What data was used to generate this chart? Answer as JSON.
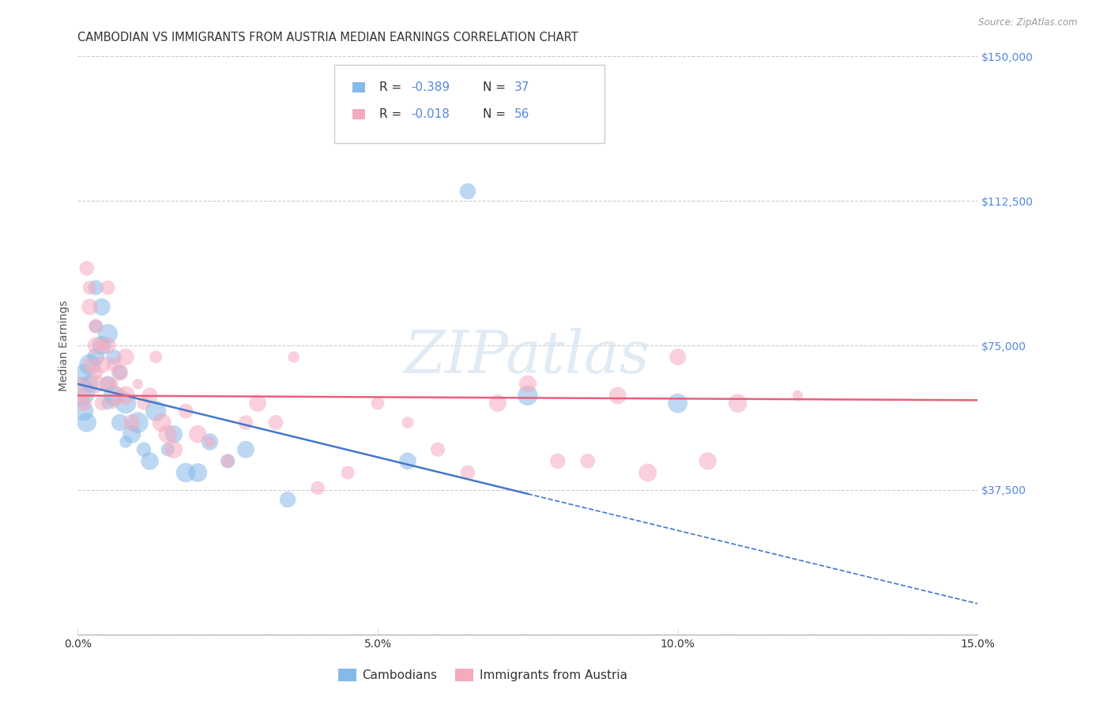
{
  "title": "CAMBODIAN VS IMMIGRANTS FROM AUSTRIA MEDIAN EARNINGS CORRELATION CHART",
  "source": "Source: ZipAtlas.com",
  "ylabel": "Median Earnings",
  "xlim": [
    0,
    0.15
  ],
  "ylim": [
    0,
    150000
  ],
  "yticks": [
    0,
    37500,
    75000,
    112500,
    150000
  ],
  "ytick_labels": [
    "",
    "$37,500",
    "$75,000",
    "$112,500",
    "$150,000"
  ],
  "xticks": [
    0.0,
    0.05,
    0.1,
    0.15
  ],
  "xtick_labels": [
    "0.0%",
    "5.0%",
    "10.0%",
    "15.0%"
  ],
  "blue_color": "#85B9E8",
  "pink_color": "#F5AABE",
  "blue_line_color": "#4477CC",
  "pink_line_color": "#E8607A",
  "right_axis_color": "#5588DD",
  "watermark": "ZIPatlas",
  "background_color": "#FFFFFF",
  "grid_color": "#CCCCCC",
  "cambodian_x": [
    0.0005,
    0.001,
    0.001,
    0.0015,
    0.002,
    0.002,
    0.003,
    0.003,
    0.003,
    0.004,
    0.004,
    0.005,
    0.005,
    0.005,
    0.006,
    0.006,
    0.007,
    0.007,
    0.008,
    0.008,
    0.009,
    0.01,
    0.011,
    0.012,
    0.013,
    0.015,
    0.016,
    0.018,
    0.02,
    0.022,
    0.025,
    0.028,
    0.035,
    0.055,
    0.065,
    0.075,
    0.1
  ],
  "cambodian_y": [
    63000,
    58000,
    68000,
    55000,
    70000,
    65000,
    72000,
    80000,
    90000,
    85000,
    75000,
    78000,
    65000,
    60000,
    72000,
    62000,
    68000,
    55000,
    60000,
    50000,
    52000,
    55000,
    48000,
    45000,
    58000,
    48000,
    52000,
    42000,
    42000,
    50000,
    45000,
    48000,
    35000,
    45000,
    115000,
    62000,
    60000
  ],
  "austria_x": [
    0.0005,
    0.001,
    0.001,
    0.0015,
    0.002,
    0.002,
    0.002,
    0.003,
    0.003,
    0.003,
    0.003,
    0.004,
    0.004,
    0.004,
    0.005,
    0.005,
    0.005,
    0.006,
    0.006,
    0.006,
    0.007,
    0.007,
    0.008,
    0.008,
    0.009,
    0.01,
    0.011,
    0.012,
    0.013,
    0.014,
    0.015,
    0.016,
    0.018,
    0.02,
    0.022,
    0.025,
    0.028,
    0.03,
    0.033,
    0.036,
    0.04,
    0.045,
    0.05,
    0.055,
    0.06,
    0.065,
    0.07,
    0.075,
    0.08,
    0.085,
    0.09,
    0.095,
    0.1,
    0.105,
    0.11,
    0.12
  ],
  "austria_y": [
    65000,
    60000,
    62000,
    95000,
    90000,
    85000,
    70000,
    80000,
    75000,
    68000,
    65000,
    75000,
    70000,
    60000,
    90000,
    75000,
    65000,
    70000,
    65000,
    60000,
    68000,
    62000,
    72000,
    62000,
    55000,
    65000,
    60000,
    62000,
    72000,
    55000,
    52000,
    48000,
    58000,
    52000,
    50000,
    45000,
    55000,
    60000,
    55000,
    72000,
    38000,
    42000,
    60000,
    55000,
    48000,
    42000,
    60000,
    65000,
    45000,
    45000,
    62000,
    42000,
    72000,
    45000,
    60000,
    62000
  ],
  "title_fontsize": 10.5,
  "axis_label_fontsize": 10,
  "tick_fontsize": 10,
  "dot_alpha": 0.55
}
